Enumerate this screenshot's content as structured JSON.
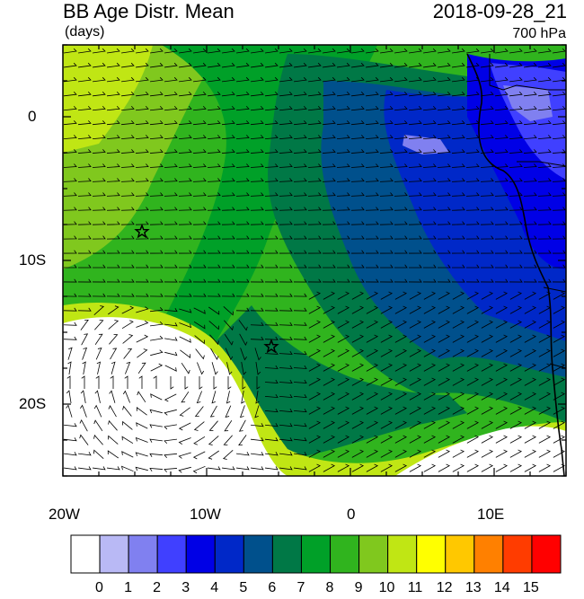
{
  "header": {
    "title": "BB Age Distr. Mean",
    "datetime": "2018-09-28_21",
    "units": "(days)",
    "level": "700 hPa"
  },
  "map": {
    "lon_range": [
      -20,
      15
    ],
    "lat_range": [
      -25,
      5
    ],
    "x_ticks": [
      "20W",
      "10W",
      "0",
      "10E"
    ],
    "y_ticks": [
      "0",
      "10S",
      "20S"
    ],
    "markers": [
      {
        "name": "star",
        "lon": -14.5,
        "lat": -8.0
      },
      {
        "name": "star",
        "lon": -5.5,
        "lat": -16.0
      }
    ]
  },
  "colorbar": {
    "labels": [
      "0",
      "1",
      "2",
      "3",
      "4",
      "5",
      "6",
      "7",
      "8",
      "9",
      "10",
      "11",
      "12",
      "13",
      "14",
      "15"
    ],
    "colors": [
      "#ffffff",
      "#b9b9f5",
      "#8080f0",
      "#4040ff",
      "#0000e6",
      "#0028c8",
      "#00508c",
      "#007846",
      "#00a028",
      "#30b41e",
      "#80c81e",
      "#c0e614",
      "#ffff00",
      "#ffc800",
      "#ff8000",
      "#ff3c00",
      "#ff0000"
    ]
  }
}
